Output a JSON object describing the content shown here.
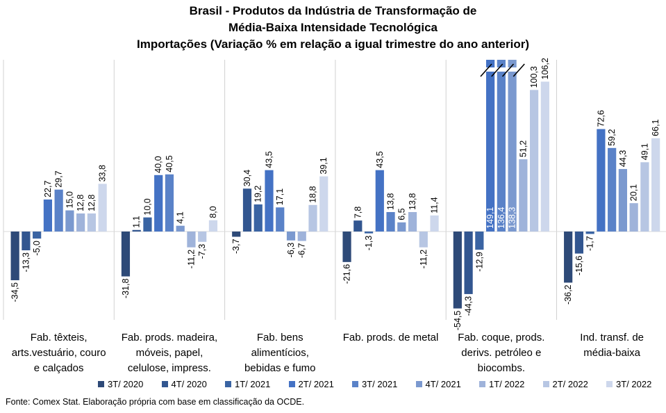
{
  "title_lines": [
    "Brasil - Produtos da Indústria de Transformação de",
    "Média-Baixa Intensidade Tecnológica",
    "Importações (Variação % em relação a igual trimestre do ano anterior)"
  ],
  "source": "Fonte: Comex Stat. Elaboração própria com base em classificação da OCDE.",
  "chart_data": {
    "type": "bar",
    "title": "Brasil - Produtos da Indústria de Transformação de Média-Baixa Intensidade Tecnológica — Importações (Variação % em relação a igual trimestre do ano anterior)",
    "categories": [
      [
        "Fab. têxteis,",
        "arts.vestuário, couro",
        "e calçados"
      ],
      [
        "Fab. prods. madeira,",
        "móveis, papel,",
        "celulose, impress."
      ],
      [
        "Fab. bens",
        "alimentícios,",
        "bebidas e fumo"
      ],
      [
        "Fab. prods. de metal"
      ],
      [
        "Fab. coque, prods.",
        "derivs. petróleo e",
        "biocombs."
      ],
      [
        "Ind. transf. de",
        "média-baixa"
      ]
    ],
    "series": [
      {
        "name": "3T/ 2020",
        "color": "#2e4a78",
        "values": [
          -34.5,
          -31.8,
          -3.7,
          -21.6,
          -54.5,
          -36.2
        ],
        "labels": [
          "-34,5",
          "-31,8",
          "-3,7",
          "-21,6",
          "-54,5",
          "-36,2"
        ]
      },
      {
        "name": "4T/ 2020",
        "color": "#325690",
        "values": [
          -13.3,
          1.1,
          30.4,
          7.8,
          -44.3,
          -15.6
        ],
        "labels": [
          "-13,3",
          "1,1",
          "30,4",
          "7,8",
          "-44,3",
          "-15,6"
        ]
      },
      {
        "name": "1T/ 2021",
        "color": "#3a64a3",
        "values": [
          -5.0,
          10.0,
          19.2,
          -1.3,
          -12.9,
          -1.7
        ],
        "labels": [
          "-5,0",
          "10,0",
          "19,2",
          "-1,3",
          "-12,9",
          "-1,7"
        ]
      },
      {
        "name": "2T/ 2021",
        "color": "#4472c4",
        "values": [
          22.7,
          40.0,
          43.5,
          43.5,
          149.1,
          72.6
        ],
        "labels": [
          "22,7",
          "40,0",
          "43,5",
          "43,5",
          "149,1",
          "72,6"
        ]
      },
      {
        "name": "3T/ 2021",
        "color": "#5a82c8",
        "values": [
          29.7,
          40.5,
          17.1,
          13.8,
          136.4,
          59.2
        ],
        "labels": [
          "29,7",
          "40,5",
          "17,1",
          "13,8",
          "136,4",
          "59,2"
        ]
      },
      {
        "name": "4T/ 2021",
        "color": "#7b99cf",
        "values": [
          15.0,
          4.1,
          -6.3,
          6.5,
          138.3,
          44.3
        ],
        "labels": [
          "15,0",
          "4,1",
          "-6,3",
          "6,5",
          "138,3",
          "44,3"
        ]
      },
      {
        "name": "1T/ 2022",
        "color": "#9fb3da",
        "values": [
          12.8,
          -11.2,
          -6.7,
          13.8,
          51.2,
          20.1
        ],
        "labels": [
          "12,8",
          "-11,2",
          "-6,7",
          "13,8",
          "51,2",
          "20,1"
        ]
      },
      {
        "name": "2T/ 2022",
        "color": "#b7c6e3",
        "values": [
          12.8,
          -7.3,
          18.8,
          -11.2,
          100.3,
          49.1
        ],
        "labels": [
          "12,8",
          "-7,3",
          "18,8",
          "-11,2",
          "100,3",
          "49,1"
        ]
      },
      {
        "name": "3T/ 2022",
        "color": "#cdd7ec",
        "values": [
          33.8,
          8.0,
          39.1,
          11.4,
          106.2,
          66.1
        ],
        "labels": [
          "33,8",
          "8,0",
          "39,1",
          "11,4",
          "106,2",
          "66,1"
        ]
      }
    ],
    "axis_break": {
      "category_index": 4,
      "series_indices": [
        3,
        4,
        5
      ],
      "note": "bars truncated with break marks"
    },
    "grid": false,
    "legend_position": "bottom"
  }
}
